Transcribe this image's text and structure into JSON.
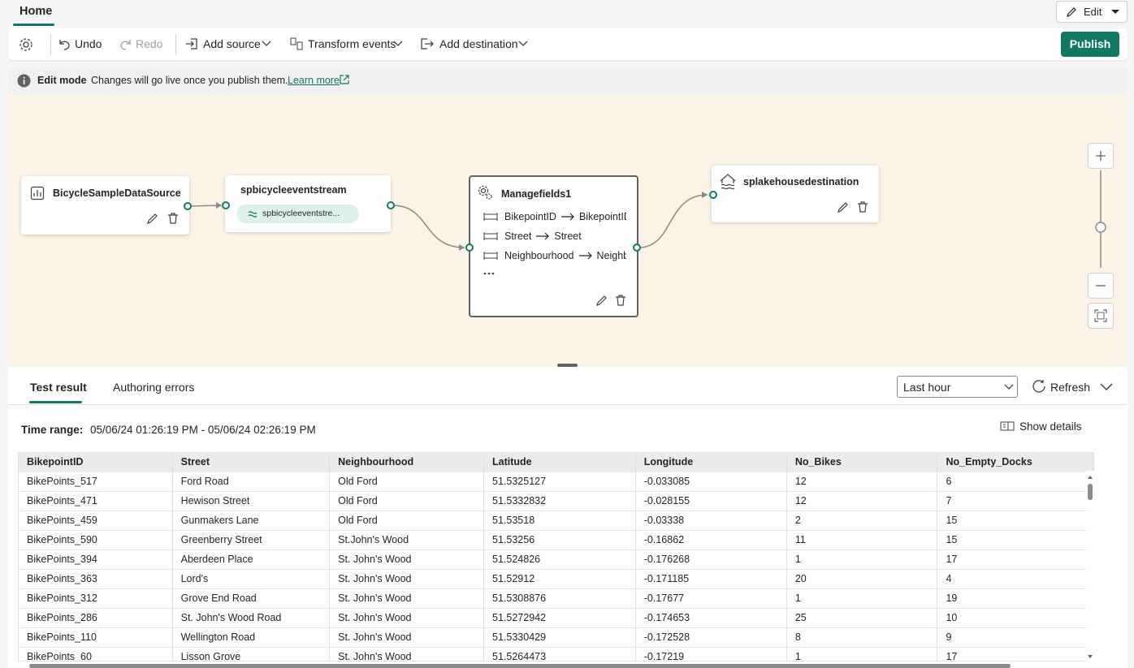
{
  "tabs": {
    "home": "Home"
  },
  "edit_button": "Edit",
  "toolbar": {
    "undo": "Undo",
    "redo": "Redo",
    "add_source": "Add source",
    "transform_events": "Transform events",
    "add_destination": "Add destination",
    "publish": "Publish"
  },
  "banner": {
    "title": "Edit mode",
    "message": "Changes will go live once you publish them.",
    "link": "Learn more"
  },
  "nodes": [
    {
      "label": "BicycleSampleDataSource"
    },
    {
      "label": "spbicycleeventstream",
      "chip": "spbicycleeventstre..."
    },
    {
      "label": "Managefields1",
      "fields": [
        {
          "from": "BikepointID",
          "to": "BikepointID"
        },
        {
          "from": "Street",
          "to": "Street"
        },
        {
          "from": "Neighbourhood",
          "to": "Neighbourhood"
        }
      ]
    },
    {
      "label": "splakehousedestination"
    }
  ],
  "results": {
    "tabs": [
      "Test result",
      "Authoring errors"
    ],
    "range_select": "Last hour",
    "refresh": "Refresh",
    "time_range_label": "Time range:",
    "time_range": "05/06/24 01:26:19 PM - 05/06/24 02:26:19 PM",
    "show_details": "Show details"
  },
  "table": {
    "columns": [
      "BikepointID",
      "Street",
      "Neighbourhood",
      "Latitude",
      "Longitude",
      "No_Bikes",
      "No_Empty_Docks"
    ],
    "rows": [
      [
        "BikePoints_517",
        "Ford Road",
        "Old Ford",
        "51.5325127",
        "-0.033085",
        "12",
        "6"
      ],
      [
        "BikePoints_471",
        "Hewison Street",
        "Old Ford",
        "51.5332832",
        "-0.028155",
        "12",
        "7"
      ],
      [
        "BikePoints_459",
        "Gunmakers Lane",
        "Old Ford",
        "51.53518",
        "-0.03338",
        "2",
        "15"
      ],
      [
        "BikePoints_590",
        "Greenberry Street",
        "St.John's Wood",
        "51.53256",
        "-0.16862",
        "11",
        "15"
      ],
      [
        "BikePoints_394",
        "Aberdeen Place",
        "St. John's Wood",
        "51.524826",
        "-0.176268",
        "1",
        "17"
      ],
      [
        "BikePoints_363",
        "Lord's",
        "St. John's Wood",
        "51.52912",
        "-0.171185",
        "20",
        "4"
      ],
      [
        "BikePoints_312",
        "Grove End Road",
        "St. John's Wood",
        "51.5308876",
        "-0.17677",
        "1",
        "19"
      ],
      [
        "BikePoints_286",
        "St. John's Wood Road",
        "St. John's Wood",
        "51.5272942",
        "-0.174653",
        "25",
        "10"
      ],
      [
        "BikePoints_110",
        "Wellington Road",
        "St. John's Wood",
        "51.5330429",
        "-0.172528",
        "8",
        "9"
      ],
      [
        "BikePoints_60",
        "Lisson Grove",
        "St. John's Wood",
        "51.5264473",
        "-0.17219",
        "1",
        "17"
      ]
    ]
  }
}
